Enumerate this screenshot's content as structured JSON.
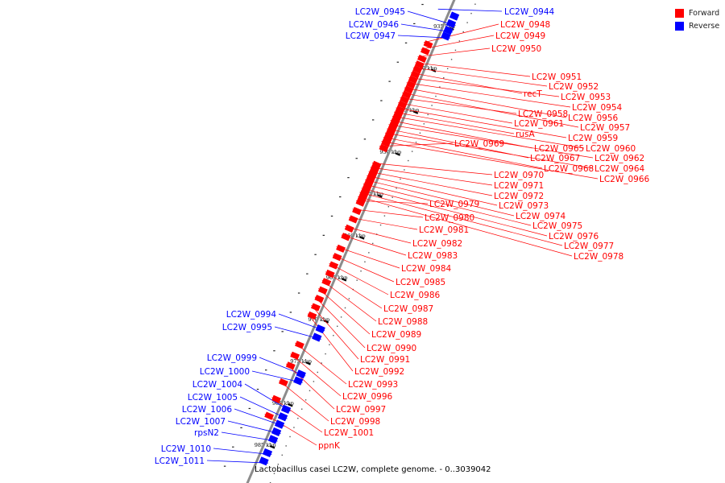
{
  "legend": {
    "forward_label": "Forward",
    "reverse_label": "Reverse",
    "forward_color": "#ff0000",
    "reverse_color": "#0000ff"
  },
  "caption": "Lactobacillus casei LC2W, complete genome. - 0..3039042",
  "ticks": [
    {
      "pos_kbp": 935,
      "label": "935 kbp"
    },
    {
      "pos_kbp": 940,
      "label": "940 kbp"
    },
    {
      "pos_kbp": 945,
      "label": "945 kbp"
    },
    {
      "pos_kbp": 950,
      "label": "950 kbp"
    },
    {
      "pos_kbp": 955,
      "label": "955 kbp"
    },
    {
      "pos_kbp": 960,
      "label": "960 kbp"
    },
    {
      "pos_kbp": 965,
      "label": "965 kbp"
    },
    {
      "pos_kbp": 970,
      "label": "970 kbp"
    },
    {
      "pos_kbp": 975,
      "label": "975 kbp"
    },
    {
      "pos_kbp": 980,
      "label": "980 kbp"
    },
    {
      "pos_kbp": 985,
      "label": "985 kbp"
    }
  ],
  "reverse_genes": [
    {
      "name": "LC2W_0944",
      "pos_kbp": 933.6
    },
    {
      "name": "LC2W_0945",
      "pos_kbp": 934.5
    },
    {
      "name": "LC2W_0946",
      "pos_kbp": 935.3
    },
    {
      "name": "LC2W_0947",
      "pos_kbp": 936.0
    },
    {
      "name": "LC2W_0994",
      "pos_kbp": 971.0
    },
    {
      "name": "LC2W_0995",
      "pos_kbp": 972.0
    },
    {
      "name": "LC2W_0999",
      "pos_kbp": 976.4
    },
    {
      "name": "LC2W_1000",
      "pos_kbp": 977.2
    },
    {
      "name": "LC2W_1004",
      "pos_kbp": 980.6
    },
    {
      "name": "LC2W_1005",
      "pos_kbp": 981.5
    },
    {
      "name": "LC2W_1006",
      "pos_kbp": 982.4
    },
    {
      "name": "LC2W_1007",
      "pos_kbp": 983.3
    },
    {
      "name": "rpsN2",
      "pos_kbp": 984.2
    },
    {
      "name": "LC2W_1010",
      "pos_kbp": 985.8
    },
    {
      "name": "LC2W_1011",
      "pos_kbp": 986.8
    }
  ],
  "forward_genes": [
    {
      "name": "LC2W_0948",
      "pos_kbp": 937.6
    },
    {
      "name": "LC2W_0949",
      "pos_kbp": 938.4
    },
    {
      "name": "LC2W_0950",
      "pos_kbp": 939.3
    },
    {
      "name": "LC2W_0951",
      "pos_kbp": 940.0
    },
    {
      "name": "LC2W_0952",
      "pos_kbp": 940.6
    },
    {
      "name": "recT",
      "pos_kbp": 941.2
    },
    {
      "name": "LC2W_0953",
      "pos_kbp": 941.8
    },
    {
      "name": "LC2W_0954",
      "pos_kbp": 942.4
    },
    {
      "name": "LC2W_0956",
      "pos_kbp": 943.0
    },
    {
      "name": "LC2W_0957",
      "pos_kbp": 943.6
    },
    {
      "name": "LC2W_0958",
      "pos_kbp": 944.2
    },
    {
      "name": "LC2W_0961",
      "pos_kbp": 944.8
    },
    {
      "name": "LC2W_0959",
      "pos_kbp": 945.4
    },
    {
      "name": "rusA",
      "pos_kbp": 945.9
    },
    {
      "name": "LC2W_0960",
      "pos_kbp": 946.4
    },
    {
      "name": "LC2W_0965",
      "pos_kbp": 946.9
    },
    {
      "name": "LC2W_0962",
      "pos_kbp": 947.4
    },
    {
      "name": "LC2W_0967",
      "pos_kbp": 947.9
    },
    {
      "name": "LC2W_0964",
      "pos_kbp": 948.4
    },
    {
      "name": "LC2W_0968",
      "pos_kbp": 948.9
    },
    {
      "name": "LC2W_0966",
      "pos_kbp": 949.4
    },
    {
      "name": "LC2W_0969",
      "pos_kbp": 950.0
    },
    {
      "name": "LC2W_0970",
      "pos_kbp": 952.0
    },
    {
      "name": "LC2W_0971",
      "pos_kbp": 952.5
    },
    {
      "name": "LC2W_0972",
      "pos_kbp": 953.0
    },
    {
      "name": "LC2W_0973",
      "pos_kbp": 953.5
    },
    {
      "name": "LC2W_0974",
      "pos_kbp": 954.0
    },
    {
      "name": "LC2W_0975",
      "pos_kbp": 954.5
    },
    {
      "name": "LC2W_0976",
      "pos_kbp": 955.0
    },
    {
      "name": "LC2W_0977",
      "pos_kbp": 955.5
    },
    {
      "name": "LC2W_0978",
      "pos_kbp": 956.0
    },
    {
      "name": "LC2W_0979",
      "pos_kbp": 956.5
    },
    {
      "name": "LC2W_0980",
      "pos_kbp": 957.5
    },
    {
      "name": "LC2W_0981",
      "pos_kbp": 958.5
    },
    {
      "name": "LC2W_0982",
      "pos_kbp": 959.6
    },
    {
      "name": "LC2W_0983",
      "pos_kbp": 960.6
    },
    {
      "name": "LC2W_0984",
      "pos_kbp": 962.0
    },
    {
      "name": "LC2W_0985",
      "pos_kbp": 963.0
    },
    {
      "name": "LC2W_0986",
      "pos_kbp": 964.0
    },
    {
      "name": "LC2W_0987",
      "pos_kbp": 965.0
    },
    {
      "name": "LC2W_0988",
      "pos_kbp": 966.0
    },
    {
      "name": "LC2W_0989",
      "pos_kbp": 967.0
    },
    {
      "name": "LC2W_0990",
      "pos_kbp": 968.0
    },
    {
      "name": "LC2W_0991",
      "pos_kbp": 969.0
    },
    {
      "name": "LC2W_0992",
      "pos_kbp": 970.0
    },
    {
      "name": "LC2W_0993",
      "pos_kbp": 973.5
    },
    {
      "name": "LC2W_0996",
      "pos_kbp": 974.8
    },
    {
      "name": "LC2W_0997",
      "pos_kbp": 976.0
    },
    {
      "name": "LC2W_0998",
      "pos_kbp": 978.0
    },
    {
      "name": "LC2W_1001",
      "pos_kbp": 980.0
    },
    {
      "name": "ppnK",
      "pos_kbp": 982.0
    }
  ]
}
